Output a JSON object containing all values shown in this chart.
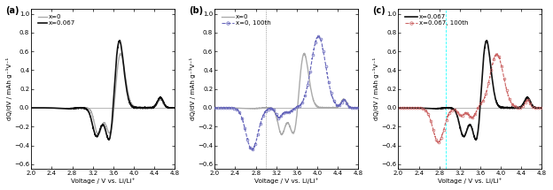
{
  "figsize": [
    6.24,
    2.15
  ],
  "dpi": 100,
  "xlim": [
    2.0,
    4.8
  ],
  "ylim": [
    -0.65,
    1.05
  ],
  "xticks": [
    2.0,
    2.4,
    2.8,
    3.2,
    3.6,
    4.0,
    4.4,
    4.8
  ],
  "yticks": [
    -0.6,
    -0.4,
    -0.2,
    0.0,
    0.2,
    0.4,
    0.6,
    0.8,
    1.0
  ],
  "xlabel": "Voltage / V vs. Li/Li⁺",
  "ylabel": "dQ/dV / mAh g⁻¹V⁻¹",
  "panel_labels": [
    "(a)",
    "(b)",
    "(c)"
  ],
  "colors": {
    "x0_initial": "#aaaaaa",
    "x0067_initial": "#111111",
    "x0_100th": "#6666bb",
    "x0067_100th": "#cc6666"
  },
  "legend_a": [
    "x=0",
    "x=0.067"
  ],
  "legend_b": [
    "x=0",
    "x=0, 100th"
  ],
  "legend_c": [
    "x=0.067",
    "x=0.067, 100th"
  ],
  "dv_line_b": 3.0,
  "dv_line_c": 2.92
}
